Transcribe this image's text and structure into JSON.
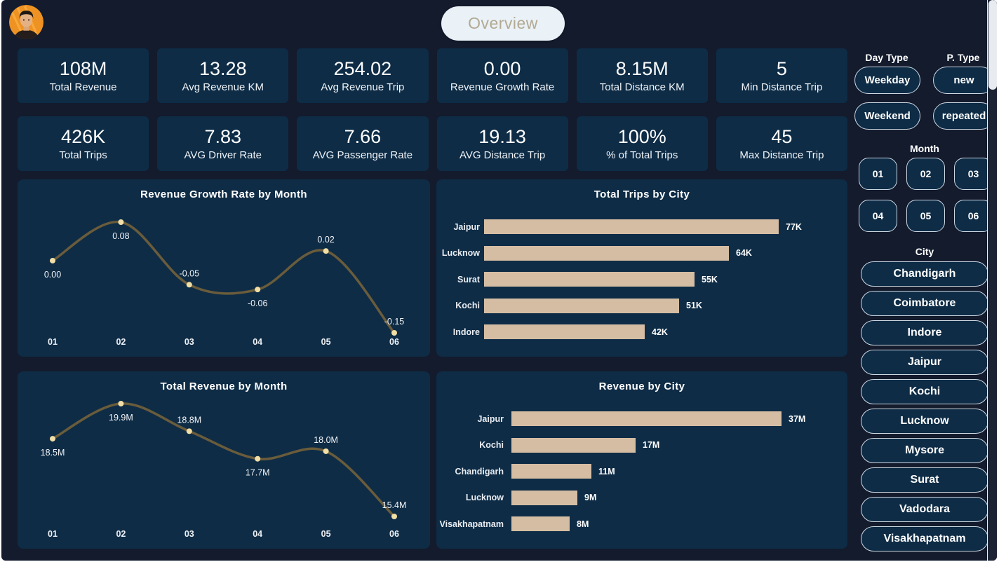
{
  "header": {
    "tab": "Overview"
  },
  "kpis": [
    {
      "value": "108M",
      "label": "Total Revenue"
    },
    {
      "value": "13.28",
      "label": "Avg Revenue KM"
    },
    {
      "value": "254.02",
      "label": "Avg Revenue Trip"
    },
    {
      "value": "0.00",
      "label": "Revenue Growth Rate"
    },
    {
      "value": "8.15M",
      "label": "Total Distance KM"
    },
    {
      "value": "5",
      "label": "Min Distance Trip"
    },
    {
      "value": "426K",
      "label": "Total Trips"
    },
    {
      "value": "7.83",
      "label": "AVG Driver Rate"
    },
    {
      "value": "7.66",
      "label": "AVG Passenger Rate"
    },
    {
      "value": "19.13",
      "label": "AVG Distance Trip"
    },
    {
      "value": "100%",
      "label": "% of Total Trips"
    },
    {
      "value": "45",
      "label": "Max Distance Trip"
    }
  ],
  "chart_data": [
    {
      "type": "line",
      "title": "Revenue Growth Rate by Month",
      "x": [
        "01",
        "02",
        "03",
        "04",
        "05",
        "06"
      ],
      "values": [
        0.0,
        0.08,
        -0.05,
        -0.06,
        0.02,
        -0.15
      ],
      "labels": [
        "0.00",
        "0.08",
        "-0.05",
        "-0.06",
        "0.02",
        "-0.15"
      ],
      "label_side": [
        "below",
        "below",
        "above",
        "below",
        "above",
        "above"
      ],
      "ylim": [
        -0.15,
        0.08
      ],
      "grid": false,
      "legend": "none",
      "axis_lines": "hidden"
    },
    {
      "type": "bar",
      "orientation": "horizontal",
      "title": "Total Trips by City",
      "categories": [
        "Jaipur",
        "Lucknow",
        "Surat",
        "Kochi",
        "Indore"
      ],
      "values": [
        77,
        64,
        55,
        51,
        42
      ],
      "unit": "K",
      "labels": [
        "77K",
        "64K",
        "55K",
        "51K",
        "42K"
      ],
      "grid": false,
      "legend": "none"
    },
    {
      "type": "line",
      "title": "Total Revenue by Month",
      "x": [
        "01",
        "02",
        "03",
        "04",
        "05",
        "06"
      ],
      "values": [
        18.5,
        19.9,
        18.8,
        17.7,
        18.0,
        15.4
      ],
      "unit": "M",
      "labels": [
        "18.5M",
        "19.9M",
        "18.8M",
        "17.7M",
        "18.0M",
        "15.4M"
      ],
      "label_side": [
        "below",
        "below",
        "above",
        "below",
        "above",
        "above"
      ],
      "ylim": [
        15.4,
        19.9
      ],
      "grid": false,
      "legend": "none",
      "axis_lines": "hidden"
    },
    {
      "type": "bar",
      "orientation": "horizontal",
      "title": "Revenue by City",
      "categories": [
        "Jaipur",
        "Kochi",
        "Chandigarh",
        "Lucknow",
        "Visakhapatnam"
      ],
      "values": [
        37,
        17,
        11,
        9,
        8
      ],
      "unit": "M",
      "labels": [
        "37M",
        "17M",
        "11M",
        "9M",
        "8M"
      ],
      "grid": false,
      "legend": "none"
    }
  ],
  "sidebar": {
    "day_type": {
      "label": "Day Type",
      "options": [
        "Weekday",
        "Weekend"
      ]
    },
    "p_type": {
      "label": "P. Type",
      "options": [
        "new",
        "repeated"
      ]
    },
    "month": {
      "label": "Month",
      "options": [
        "01",
        "02",
        "03",
        "04",
        "05",
        "06"
      ]
    },
    "city": {
      "label": "City",
      "options": [
        "Chandigarh",
        "Coimbatore",
        "Indore",
        "Jaipur",
        "Kochi",
        "Lucknow",
        "Mysore",
        "Surat",
        "Vadodara",
        "Visakhapatnam"
      ]
    }
  },
  "colors": {
    "background": "#131b2d",
    "card": "#0e2c46",
    "bar": "#d5bda4",
    "line": "#6a5c3b",
    "marker": "#f2dfa6",
    "pill_bg": "#eaf1f7",
    "pill_text": "#b2aa92",
    "button_border": "#cdd8e3"
  }
}
